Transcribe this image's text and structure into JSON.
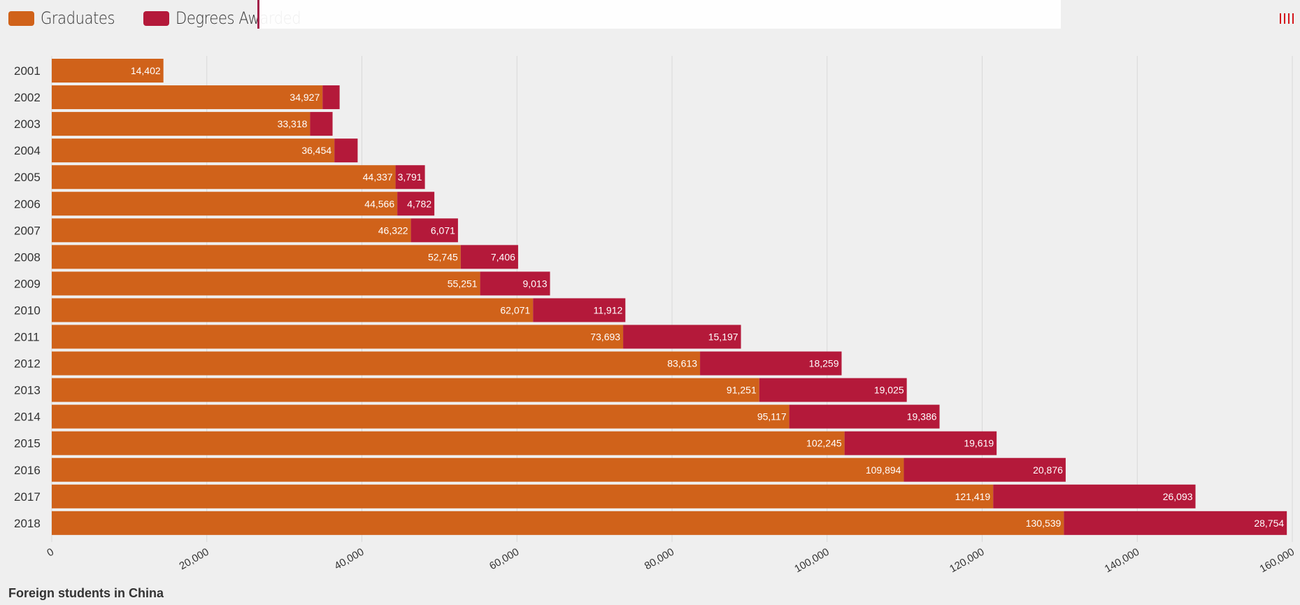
{
  "legend": [
    {
      "label": "Graduates",
      "color": "#d0621a"
    },
    {
      "label": "Degrees Awarded",
      "color": "#b4193a"
    }
  ],
  "chart_data": {
    "type": "bar",
    "orientation": "horizontal",
    "stacked": true,
    "title": "Foreign students in China",
    "xlabel": "",
    "ylabel": "",
    "xlim": [
      0,
      160000
    ],
    "xticks": [
      "0",
      "20,000",
      "40,000",
      "60,000",
      "80,000",
      "100,000",
      "120,000",
      "140,000",
      "160,000"
    ],
    "xtick_values": [
      0,
      20000,
      40000,
      60000,
      80000,
      100000,
      120000,
      140000,
      160000
    ],
    "grid": true,
    "legend_position": "top-left",
    "categories": [
      "2001",
      "2002",
      "2003",
      "2004",
      "2005",
      "2006",
      "2007",
      "2008",
      "2009",
      "2010",
      "2011",
      "2012",
      "2013",
      "2014",
      "2015",
      "2016",
      "2017",
      "2018"
    ],
    "series": [
      {
        "name": "Graduates",
        "color": "#d0621a",
        "values": [
          14402,
          34927,
          33318,
          36454,
          44337,
          44566,
          46322,
          52745,
          55251,
          62071,
          73693,
          83613,
          91251,
          95117,
          102245,
          109894,
          121419,
          130539
        ],
        "labels": [
          "14,402",
          "34,927",
          "33,318",
          "36,454",
          "44,337",
          "44,566",
          "46,322",
          "52,745",
          "55,251",
          "62,071",
          "73,693",
          "83,613",
          "91,251",
          "95,117",
          "102,245",
          "109,894",
          "121,419",
          "130,539"
        ]
      },
      {
        "name": "Degrees Awarded",
        "color": "#b4193a",
        "values": [
          0,
          2200,
          2900,
          3000,
          3791,
          4782,
          6071,
          7406,
          9013,
          11912,
          15197,
          18259,
          19025,
          19386,
          19619,
          20876,
          26093,
          28754
        ],
        "labels": [
          "",
          "",
          "",
          "",
          "3,791",
          "4,782",
          "6,071",
          "7,406",
          "9,013",
          "11,912",
          "15,197",
          "18,259",
          "19,025",
          "19,386",
          "19,619",
          "20,876",
          "26,093",
          "28,754"
        ]
      }
    ]
  }
}
